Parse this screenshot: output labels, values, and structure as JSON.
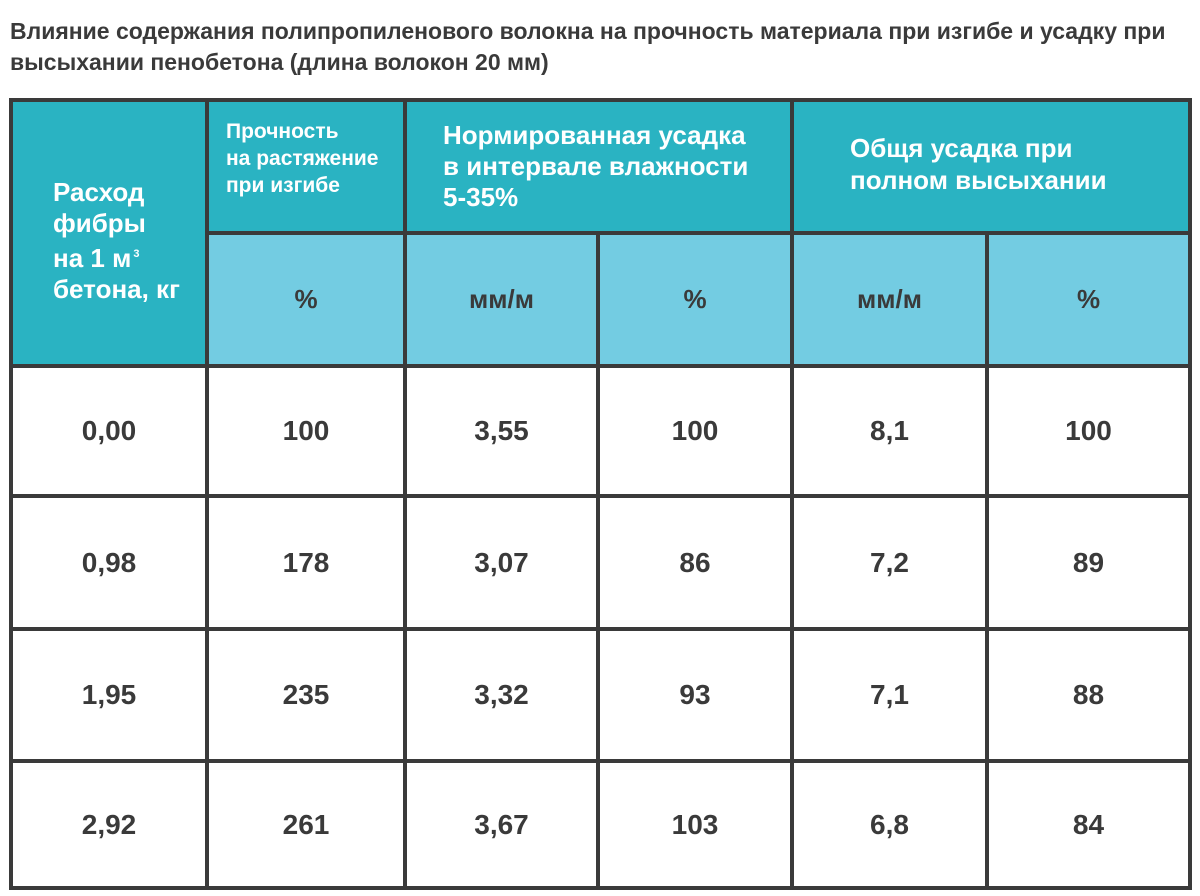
{
  "title": "Влияние содержания полипропиленового волокна на прочность материала при изгибе и усадку при высыхании пенобетона (длина волокон 20 мм)",
  "table": {
    "headers": {
      "fiber": "Расход\nфибры\nна 1 м",
      "fiber_sup": "3",
      "fiber_tail": "бетона, кг",
      "strength": "Прочность\nна растяжение\nпри изгибе",
      "norm_shrink": "Нормированная усадка\nв интервале влажности\n5-35%",
      "total_shrink": "Общя усадка при\nполном высыхании"
    },
    "units": [
      "%",
      "мм/м",
      "%",
      "мм/м",
      "%"
    ],
    "rows": [
      [
        "0,00",
        "100",
        "3,55",
        "100",
        "8,1",
        "100"
      ],
      [
        "0,98",
        "178",
        "3,07",
        "86",
        "7,2",
        "89"
      ],
      [
        "1,95",
        "235",
        "3,32",
        "93",
        "7,1",
        "88"
      ],
      [
        "2,92",
        "261",
        "3,67",
        "103",
        "6,8",
        "84"
      ]
    ]
  },
  "colors": {
    "header_dark": "#2ab3c2",
    "header_light": "#73cce2",
    "border": "#3a3a3a",
    "text": "#3a3a3a"
  }
}
